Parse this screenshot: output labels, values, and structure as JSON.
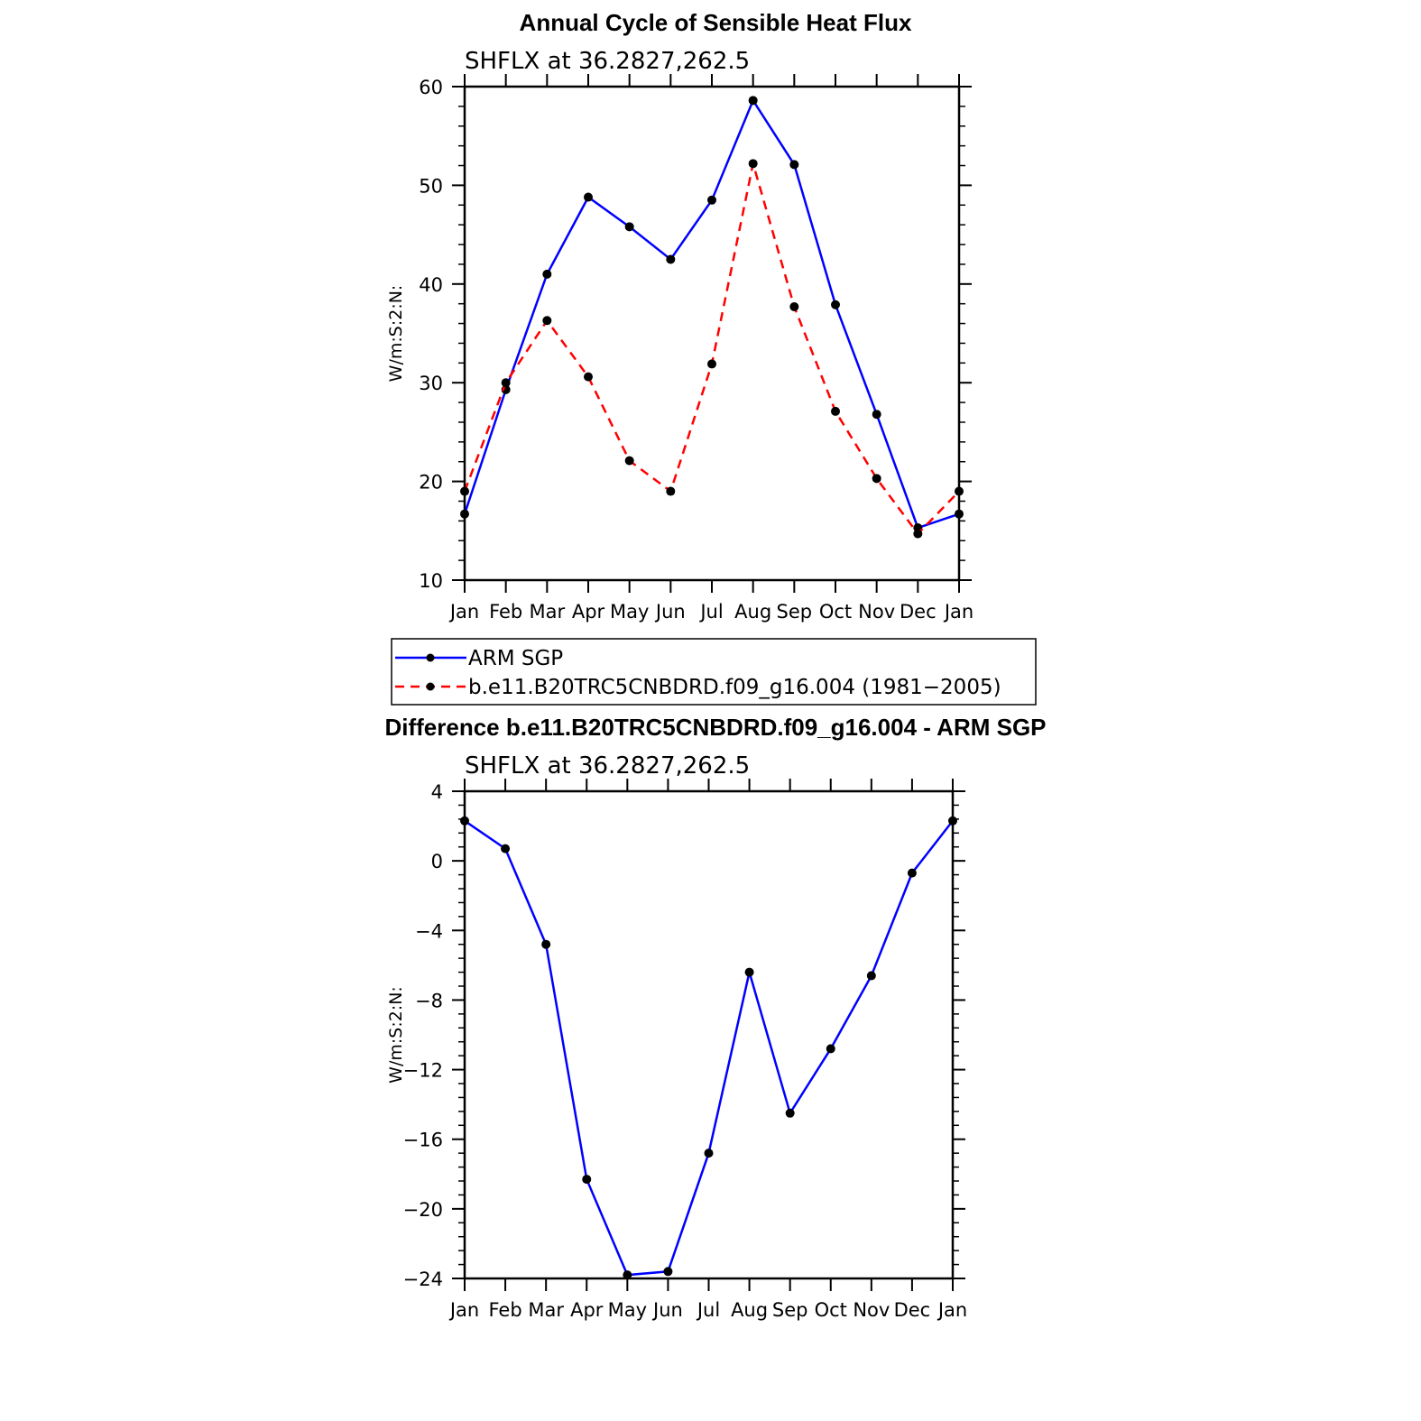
{
  "chart_data": [
    {
      "type": "line",
      "title": "Annual Cycle of Sensible Heat Flux",
      "subtitle": "SHFLX  at  36.2827,262.5",
      "ylabel": "W/m:S:2:N:",
      "xlabel": "",
      "categories": [
        "Jan",
        "Feb",
        "Mar",
        "Apr",
        "May",
        "Jun",
        "Jul",
        "Aug",
        "Sep",
        "Oct",
        "Nov",
        "Dec",
        "Jan"
      ],
      "ylim": [
        10,
        60
      ],
      "yticks": [
        10,
        20,
        30,
        40,
        50,
        60
      ],
      "ytick_labels": [
        "10",
        "20",
        "30",
        "40",
        "50",
        "60"
      ],
      "series": [
        {
          "name": "ARM  SGP",
          "color": "#0000ff",
          "dash": "solid",
          "values": [
            16.7,
            29.3,
            41.0,
            48.8,
            45.8,
            42.5,
            48.5,
            58.6,
            52.1,
            37.9,
            26.8,
            15.3,
            16.7
          ]
        },
        {
          "name": "b.e11.B20TRC5CNBDRD.f09_g16.004 (1981−2005)",
          "color": "#ff0000",
          "dash": "dashed",
          "values": [
            19.0,
            30.0,
            36.3,
            30.6,
            22.1,
            19.0,
            31.9,
            52.2,
            37.7,
            27.1,
            20.3,
            14.7,
            19.0
          ]
        }
      ],
      "legend": "below"
    },
    {
      "type": "line",
      "title": "Difference b.e11.B20TRC5CNBDRD.f09_g16.004 - ARM SGP",
      "subtitle": "SHFLX  at  36.2827,262.5",
      "ylabel": "W/m:S:2:N:",
      "xlabel": "",
      "categories": [
        "Jan",
        "Feb",
        "Mar",
        "Apr",
        "May",
        "Jun",
        "Jul",
        "Aug",
        "Sep",
        "Oct",
        "Nov",
        "Dec",
        "Jan"
      ],
      "ylim": [
        -24,
        4
      ],
      "yticks": [
        -24,
        -20,
        -16,
        -12,
        -8,
        -4,
        0,
        4
      ],
      "ytick_labels": [
        "−24",
        "−20",
        "−16",
        "−12",
        "−8",
        "−4",
        "0",
        "4"
      ],
      "series": [
        {
          "color": "#0000ff",
          "dash": "solid",
          "values": [
            2.3,
            0.7,
            -4.8,
            -18.3,
            -23.8,
            -23.6,
            -16.8,
            -6.4,
            -14.5,
            -10.8,
            -6.6,
            -0.7,
            2.3
          ]
        }
      ]
    }
  ]
}
